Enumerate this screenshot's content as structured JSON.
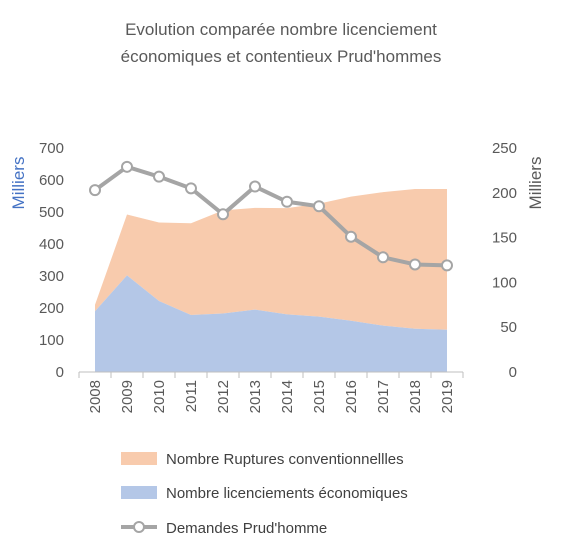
{
  "chart_data": {
    "type": "area",
    "title_lines": [
      "Evolution comparée  nombre licenciement",
      "économiques et contentieux Prud'hommes"
    ],
    "categories": [
      "2008",
      "2009",
      "2010",
      "2011",
      "2012",
      "2013",
      "2014",
      "2015",
      "2016",
      "2017",
      "2018",
      "2019"
    ],
    "y_left": {
      "label": "Milliers",
      "range": [
        0,
        700
      ],
      "ticks": [
        "0",
        "100",
        "200",
        "300",
        "400",
        "500",
        "600",
        "700"
      ]
    },
    "y_right": {
      "label": "Milliers",
      "range": [
        0,
        250
      ],
      "ticks": [
        "0",
        "50",
        "100",
        "150",
        "200",
        "250"
      ]
    },
    "series": [
      {
        "name": "Nombre Ruptures conventionnellles",
        "kind": "stacked-area",
        "axis": "left",
        "values": [
          20,
          190,
          245,
          287,
          322,
          318,
          332,
          353,
          388,
          417,
          437,
          440
        ]
      },
      {
        "name": "Nombre licenciements économiques",
        "kind": "stacked-area",
        "axis": "left",
        "values": [
          190,
          302,
          222,
          178,
          183,
          195,
          180,
          173,
          160,
          145,
          135,
          132
        ]
      },
      {
        "name": "Demandes Prud'homme",
        "kind": "line",
        "axis": "right",
        "values": [
          203,
          229,
          218,
          205,
          176,
          207,
          190,
          185,
          151,
          128,
          120,
          119
        ]
      }
    ],
    "colors": {
      "ruptures": "#f8cbad",
      "licenciements": "#b4c7e7",
      "line": "#a5a5a5",
      "axis_left": "#4472c4"
    },
    "grid": false,
    "legend_position": "bottom"
  }
}
